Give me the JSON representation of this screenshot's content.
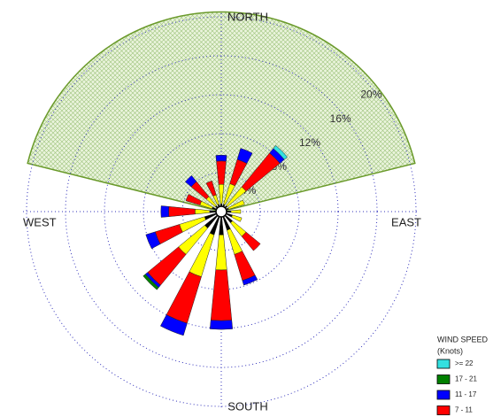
{
  "chart_data": {
    "type": "windrose",
    "directions": {
      "north": "NORTH",
      "east": "EAST",
      "south": "SOUTH",
      "west": "WEST"
    },
    "bearings": [
      0,
      22.5,
      45,
      67.5,
      90,
      112.5,
      135,
      157.5,
      180,
      202.5,
      225,
      247.5,
      270,
      292.5,
      315,
      337.5
    ],
    "series": [
      {
        "color": "#000000",
        "values": [
          0.8,
          0.8,
          0.8,
          0.8,
          1.0,
          1.2,
          1.5,
          2.0,
          2.4,
          2.5,
          2.2,
          1.8,
          1.2,
          1.0,
          0.8,
          0.8
        ]
      },
      {
        "color": "#ffff00",
        "values": [
          2.0,
          2.2,
          2.5,
          1.7,
          1.0,
          1.0,
          1.8,
          2.6,
          3.6,
          4.5,
          3.5,
          2.7,
          1.5,
          1.3,
          1.2,
          1.0
        ]
      },
      {
        "name": "7 - 11",
        "color": "#ff0000",
        "values": [
          2.4,
          2.6,
          4.5,
          0,
          0,
          0,
          1.9,
          2.8,
          5.2,
          5.0,
          4.1,
          2.6,
          2.7,
          1.5,
          2.0,
          1.5
        ]
      },
      {
        "name": "11 - 17",
        "color": "#0000ff",
        "values": [
          0.6,
          1.2,
          0.6,
          0,
          0,
          0,
          0,
          0.5,
          0.9,
          1.3,
          0.3,
          1.0,
          0.8,
          0,
          0.8,
          0
        ]
      },
      {
        "name": "17 - 21",
        "color": "#008000",
        "values": [
          0,
          0,
          0,
          0,
          0,
          0,
          0,
          0,
          0,
          0,
          0.3,
          0,
          0,
          0,
          0,
          0
        ]
      },
      {
        "name": ">= 22",
        "color": "#33e0e0",
        "values": [
          0,
          0,
          0.4,
          0,
          0,
          0,
          0,
          0,
          0,
          0,
          0,
          0,
          0,
          0,
          0,
          0
        ]
      }
    ],
    "rlim": [
      0,
      20
    ],
    "rticks": [
      {
        "value": 4,
        "label": "4%"
      },
      {
        "value": 8,
        "label": "8%"
      },
      {
        "value": 12,
        "label": "12%"
      },
      {
        "value": 16,
        "label": "16%"
      },
      {
        "value": 20,
        "label": "20%"
      }
    ],
    "highlight": {
      "from": 284,
      "to": 76,
      "r": 20.5,
      "color": "#6a9a2a"
    },
    "legend": {
      "title": "WIND SPEED",
      "subtitle": "(Knots)"
    }
  }
}
